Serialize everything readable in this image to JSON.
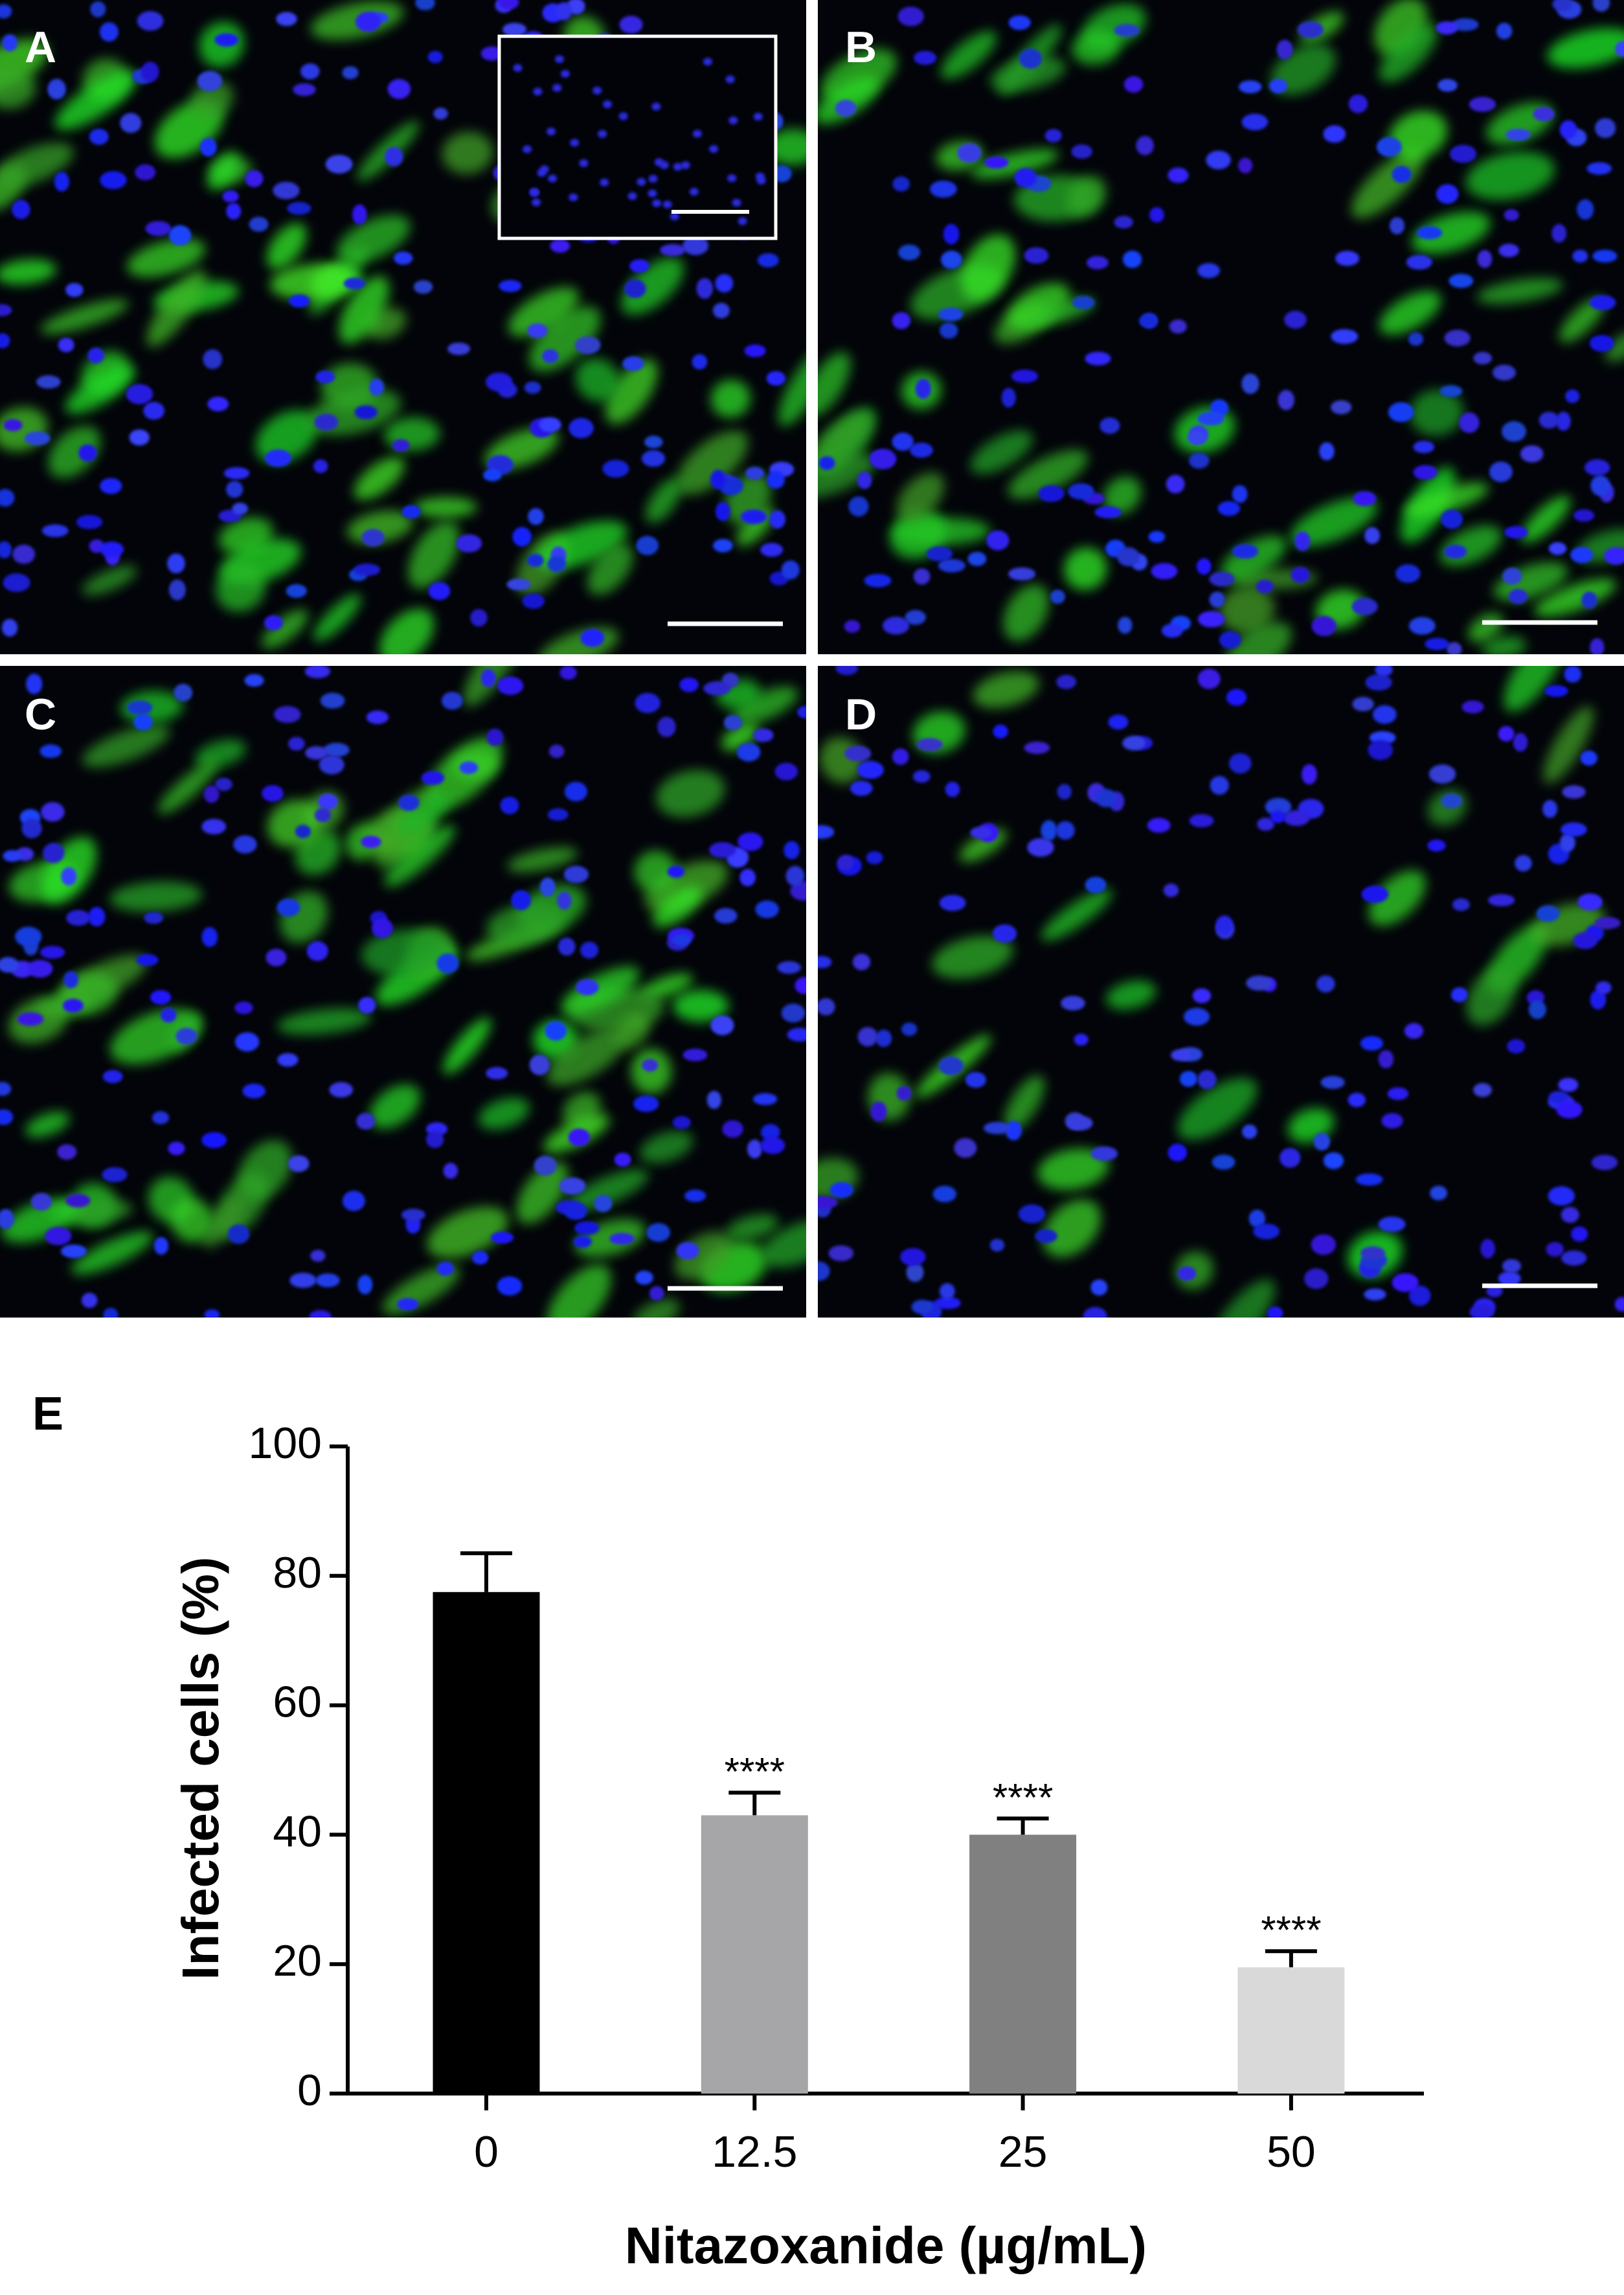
{
  "panel_labels": [
    "A",
    "B",
    "C",
    "D",
    "E"
  ],
  "chart_data": {
    "type": "bar",
    "categories": [
      "0",
      "12.5",
      "25",
      "50"
    ],
    "values": [
      77.5,
      43,
      40,
      19.5
    ],
    "errors": [
      6,
      3.5,
      2.5,
      2.5
    ],
    "colors": [
      "#000000",
      "#a6a6a9",
      "#808080",
      "#d9d9d9"
    ],
    "significance": [
      null,
      "****",
      "****",
      "****"
    ],
    "x_label": "Nitazoxanide (µg/mL)",
    "y_label": "Infected cells (%)",
    "ylim": [
      0,
      100
    ],
    "yticks": [
      0,
      20,
      40,
      60,
      80,
      100
    ],
    "grid": false
  }
}
